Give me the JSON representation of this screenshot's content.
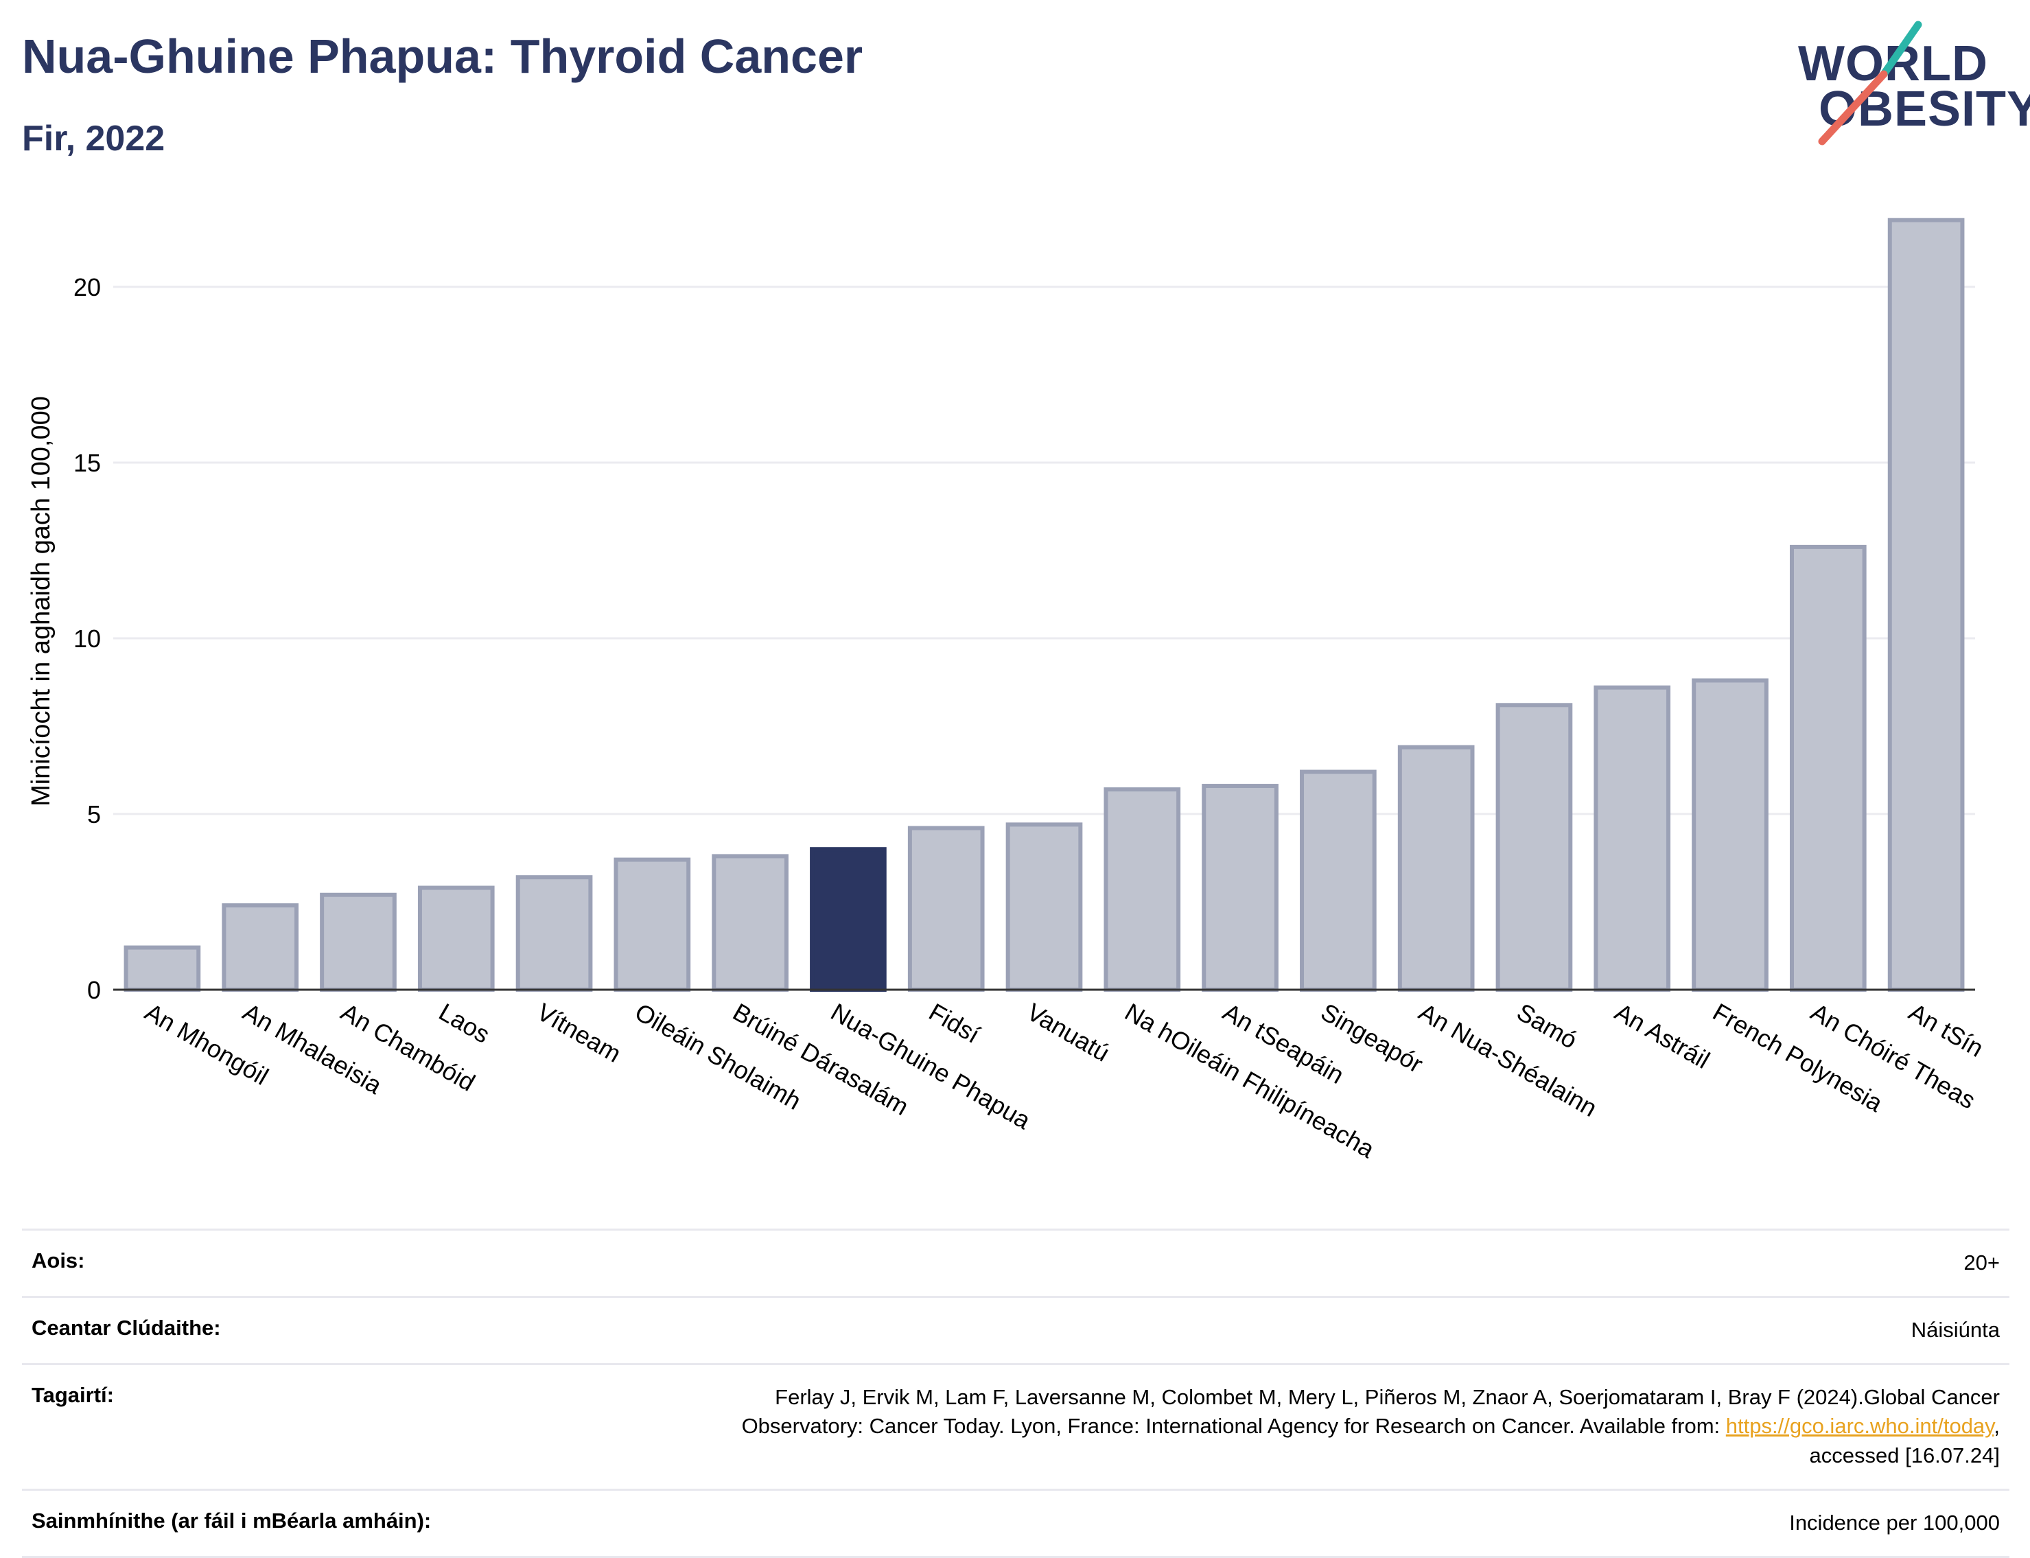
{
  "header": {
    "title": "Nua-Ghuine Phapua: Thyroid Cancer",
    "subtitle": "Fir, 2022"
  },
  "logo": {
    "line1": "WORLD",
    "line2": "OBESITY",
    "colors": {
      "text": "#2b3661",
      "teal": "#2bb5a8",
      "coral": "#e8695a"
    }
  },
  "chart_data": {
    "type": "bar",
    "ylabel": "Minicíocht in aghaidh gach 100,000",
    "xlabel": "",
    "ylim": [
      0,
      22.5
    ],
    "yticks": [
      0,
      5,
      10,
      15,
      20
    ],
    "grid": true,
    "highlight_category": "Nua-Ghuine Phapua",
    "colors": {
      "bar": "#bfc3cf",
      "bar_edge": "#9ba1b6",
      "highlight": "#2b3661",
      "grid": "#ebebf0"
    },
    "categories": [
      "An Mhongóil",
      "An Mhalaeisia",
      "An Chambóid",
      "Laos",
      "Vítneam",
      "Oileáin Sholaimh",
      "Brúiné Dárasalám",
      "Nua-Ghuine Phapua",
      "Fidsí",
      "Vanuatú",
      "Na hOileáin Fhilipíneacha",
      "An tSeapáin",
      "Singeapór",
      "An Nua-Shéalainn",
      "Samó",
      "An Astráil",
      "French Polynesia",
      "An Chóiré Theas",
      "An tSín"
    ],
    "values": [
      1.2,
      2.4,
      2.7,
      2.9,
      3.2,
      3.7,
      3.8,
      4.0,
      4.6,
      4.7,
      5.7,
      5.8,
      6.2,
      6.9,
      8.1,
      8.6,
      8.8,
      12.6,
      21.9
    ]
  },
  "footer": {
    "rows": [
      {
        "label": "Aois:",
        "value": "20+"
      },
      {
        "label": "Ceantar Clúdaithe:",
        "value": "Náisiúnta"
      },
      {
        "label": "Tagairtí:",
        "value_line1": "Ferlay J, Ervik M, Lam F, Laversanne M, Colombet M, Mery L, Piñeros M, Znaor A, Soerjomataram I, Bray F (2024).Global Cancer",
        "value_line2_pre": "Observatory: Cancer Today. Lyon, France: International Agency for Research on Cancer. Available from: ",
        "link": "https://gco.iarc.who.int/today",
        "value_line2_post": ",",
        "value_line3": "accessed [16.07.24]"
      },
      {
        "label": "Sainmhínithe (ar fáil i mBéarla amháin):",
        "value": "Incidence per 100,000"
      }
    ]
  }
}
